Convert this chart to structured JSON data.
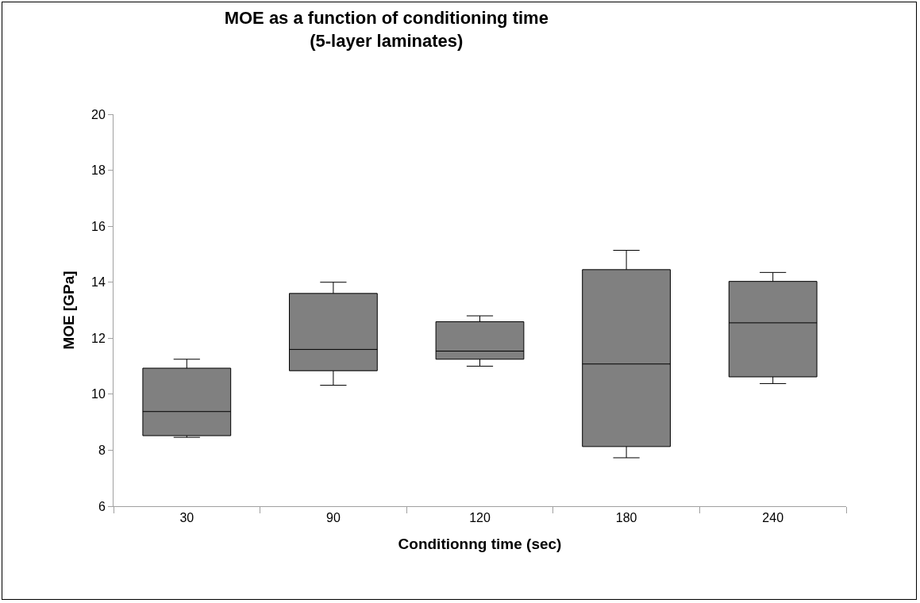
{
  "chart_data": {
    "type": "box",
    "title": "MOE as a function of conditioning time\n(5-layer laminates)",
    "xlabel": "Conditionng time (sec)",
    "ylabel": "MOE [GPa]",
    "categories": [
      "30",
      "90",
      "120",
      "180",
      "240"
    ],
    "boxes": [
      {
        "low": 8.46,
        "q1": 8.52,
        "median": 9.38,
        "q3": 10.93,
        "high": 11.25
      },
      {
        "low": 10.32,
        "q1": 10.84,
        "median": 11.6,
        "q3": 13.6,
        "high": 14.0
      },
      {
        "low": 11.0,
        "q1": 11.25,
        "median": 11.54,
        "q3": 12.59,
        "high": 12.8
      },
      {
        "low": 7.73,
        "q1": 8.13,
        "median": 11.08,
        "q3": 14.45,
        "high": 15.14
      },
      {
        "low": 10.38,
        "q1": 10.62,
        "median": 12.55,
        "q3": 14.03,
        "high": 14.35
      }
    ],
    "color": "#808080",
    "ylim": [
      6,
      20
    ],
    "yticks": [
      6,
      8,
      10,
      12,
      14,
      16,
      18,
      20
    ],
    "grid": false
  }
}
